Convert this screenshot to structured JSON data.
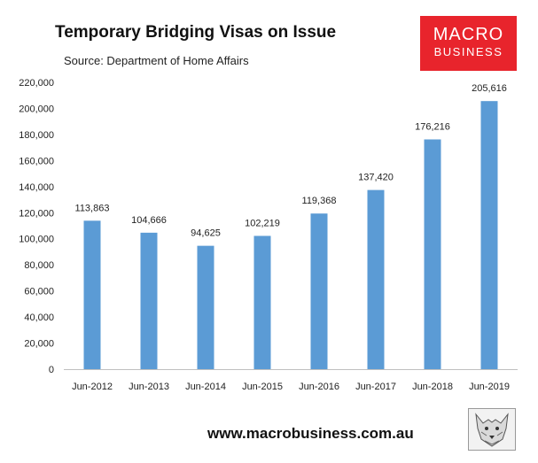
{
  "header": {
    "title": "Temporary Bridging Visas on Issue",
    "source": "Source: Department of Home Affairs"
  },
  "logo": {
    "line1": "MACRO",
    "line2": "BUSINESS",
    "bg_color": "#e8242c"
  },
  "footer": {
    "url": "www.macrobusiness.com.au",
    "icon": "wolf-logo-icon"
  },
  "chart_data": {
    "type": "bar",
    "title": "Temporary Bridging Visas on Issue",
    "categories": [
      "Jun-2012",
      "Jun-2013",
      "Jun-2014",
      "Jun-2015",
      "Jun-2016",
      "Jun-2017",
      "Jun-2018",
      "Jun-2019"
    ],
    "values": [
      113863,
      104666,
      94625,
      102219,
      119368,
      137420,
      176216,
      205616
    ],
    "value_labels": [
      "113,863",
      "104,666",
      "94,625",
      "102,219",
      "119,368",
      "137,420",
      "176,216",
      "205,616"
    ],
    "ylim": [
      0,
      220000
    ],
    "yticks": [
      0,
      20000,
      40000,
      60000,
      80000,
      100000,
      120000,
      140000,
      160000,
      180000,
      200000,
      220000
    ],
    "ytick_labels": [
      "0",
      "20,000",
      "40,000",
      "60,000",
      "80,000",
      "100,000",
      "120,000",
      "140,000",
      "160,000",
      "180,000",
      "200,000",
      "220,000"
    ],
    "grid": false,
    "legend": false,
    "bar_color": "#5b9bd5"
  }
}
